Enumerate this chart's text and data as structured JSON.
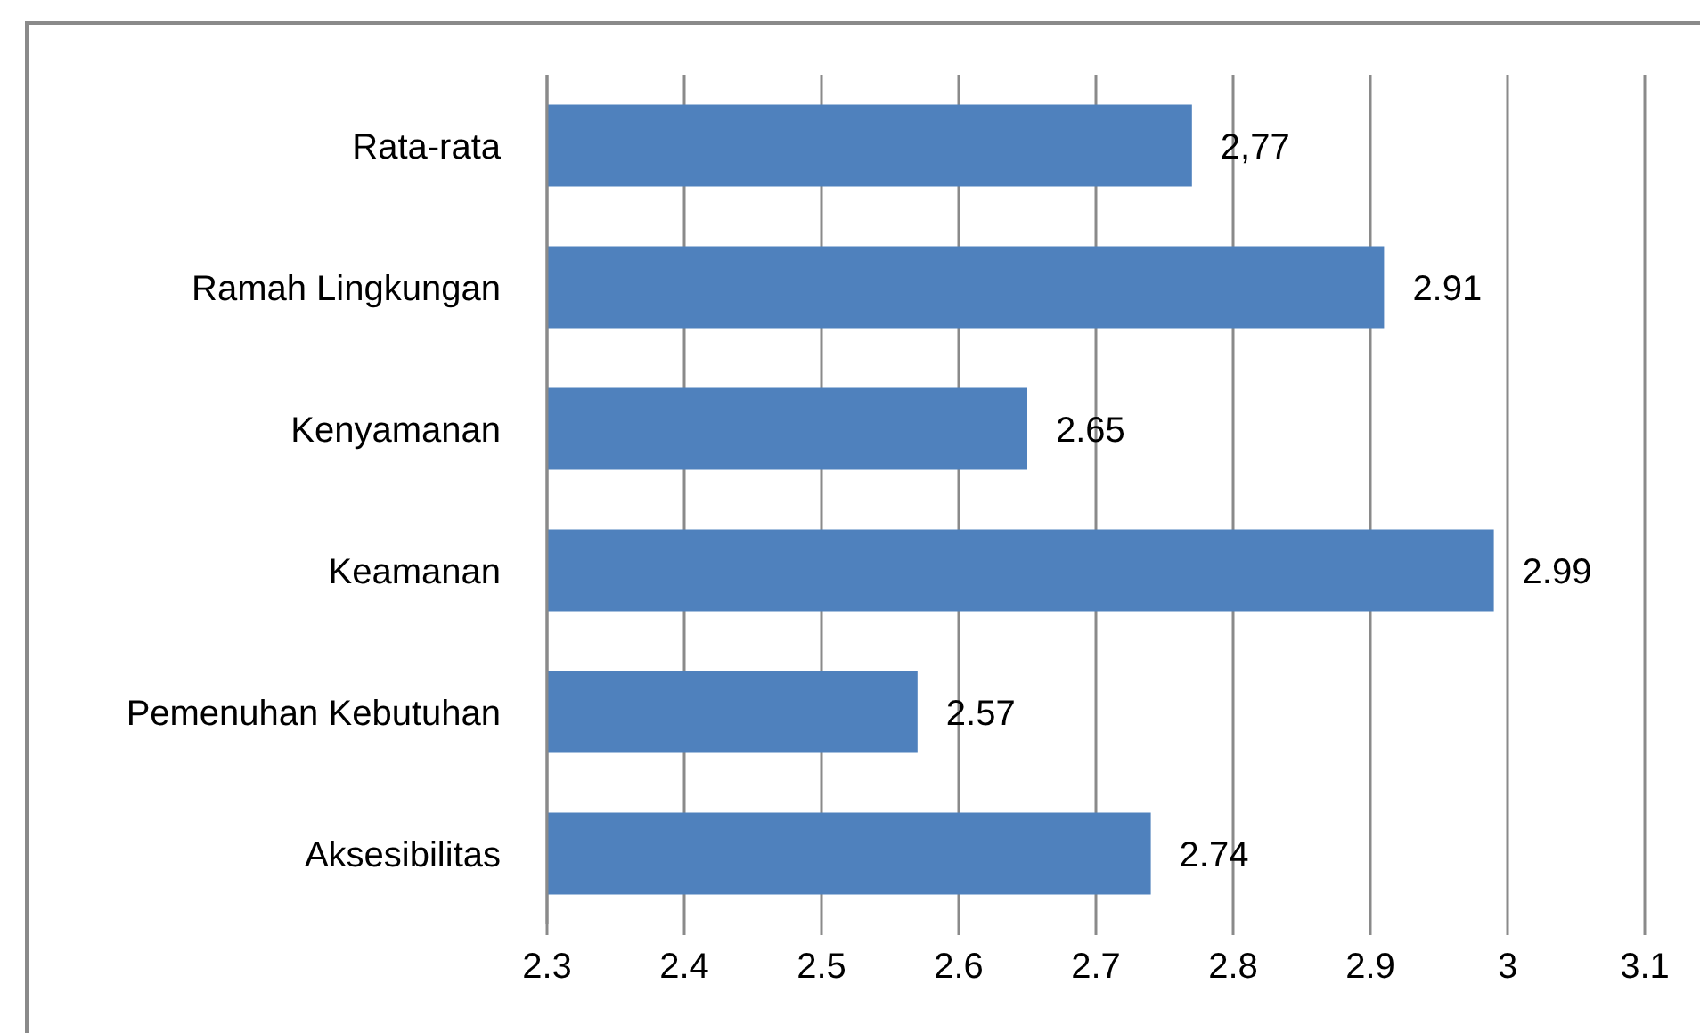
{
  "chart_data": {
    "type": "bar",
    "orientation": "horizontal",
    "categories": [
      "Rata-rata",
      "Ramah Lingkungan",
      "Kenyamanan",
      "Keamanan",
      "Pemenuhan Kebutuhan",
      "Aksesibilitas"
    ],
    "values": [
      2.77,
      2.91,
      2.65,
      2.99,
      2.57,
      2.74
    ],
    "value_labels": [
      "2,77",
      "2.91",
      "2.65",
      "2.99",
      "2.57",
      "2.74"
    ],
    "color": "#4f81bd",
    "xlim": [
      2.3,
      3.1
    ],
    "xticks": [
      2.3,
      2.4,
      2.5,
      2.6,
      2.7,
      2.8,
      2.9,
      3,
      3.1
    ],
    "grid": "x"
  }
}
